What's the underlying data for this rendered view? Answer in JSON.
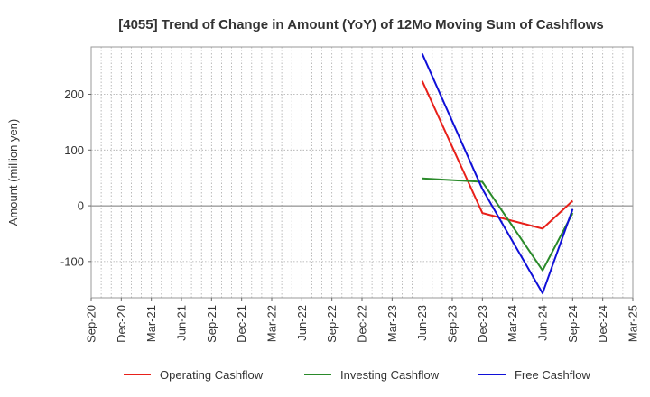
{
  "chart_data": {
    "type": "line",
    "title": "[4055]  Trend of Change in Amount (YoY) of 12Mo Moving Sum of Cashflows",
    "xlabel": "",
    "ylabel": "Amount (million yen)",
    "categories": [
      "Sep-20",
      "Dec-20",
      "Mar-21",
      "Jun-21",
      "Sep-21",
      "Dec-21",
      "Mar-22",
      "Jun-22",
      "Sep-22",
      "Dec-22",
      "Mar-23",
      "Jun-23",
      "Sep-23",
      "Dec-23",
      "Mar-24",
      "Jun-24",
      "Sep-24",
      "Dec-24",
      "Mar-25"
    ],
    "ylim": [
      -165,
      285
    ],
    "yticks": [
      -100,
      0,
      100,
      200
    ],
    "ytick_labels": [
      "-100",
      "0",
      "100",
      "200"
    ],
    "grid": true,
    "legend_position": "bottom",
    "series": [
      {
        "name": "Operating Cashflow",
        "color": "#e8201a",
        "points": [
          {
            "x": "Jun-23",
            "y": 224
          },
          {
            "x": "Dec-23",
            "y": -13
          },
          {
            "x": "Jun-24",
            "y": -41
          },
          {
            "x": "Sep-24",
            "y": 9
          }
        ]
      },
      {
        "name": "Investing Cashflow",
        "color": "#2a8a2a",
        "points": [
          {
            "x": "Jun-23",
            "y": 49
          },
          {
            "x": "Dec-23",
            "y": 43
          },
          {
            "x": "Jun-24",
            "y": -116
          },
          {
            "x": "Sep-24",
            "y": -13
          }
        ]
      },
      {
        "name": "Free Cashflow",
        "color": "#1010d8",
        "points": [
          {
            "x": "Jun-23",
            "y": 273
          },
          {
            "x": "Dec-23",
            "y": 30
          },
          {
            "x": "Jun-24",
            "y": -157
          },
          {
            "x": "Sep-24",
            "y": -6
          }
        ]
      }
    ]
  }
}
